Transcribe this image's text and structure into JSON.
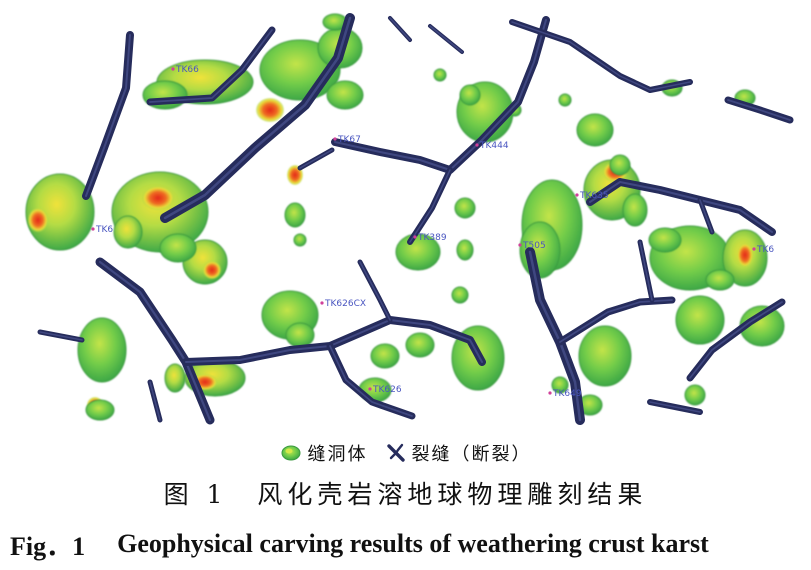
{
  "figure": {
    "well_labels": [
      "TK66",
      "TK67",
      "TK444",
      "TK635",
      "TK6",
      "TK389",
      "T505",
      "TK6",
      "TK626CX",
      "TK626",
      "TK649"
    ],
    "legend": {
      "cavity_icon": "green-blob-icon",
      "cavity_label": "缝洞体",
      "fracture_icon": "crack-icon",
      "fracture_label": "裂缝（断裂）"
    },
    "colors": {
      "cavity_green": "#5cc44a",
      "core_yellow": "#e8e23c",
      "core_red": "#e0301a",
      "fracture": "#262c5c",
      "well_label": "#4a56c0"
    }
  },
  "caption_zh": {
    "number": "图 1",
    "text": "风化壳岩溶地球物理雕刻结果"
  },
  "caption_en": {
    "number": "Fig．1",
    "text": "Geophysical carving results of weathering crust karst"
  }
}
